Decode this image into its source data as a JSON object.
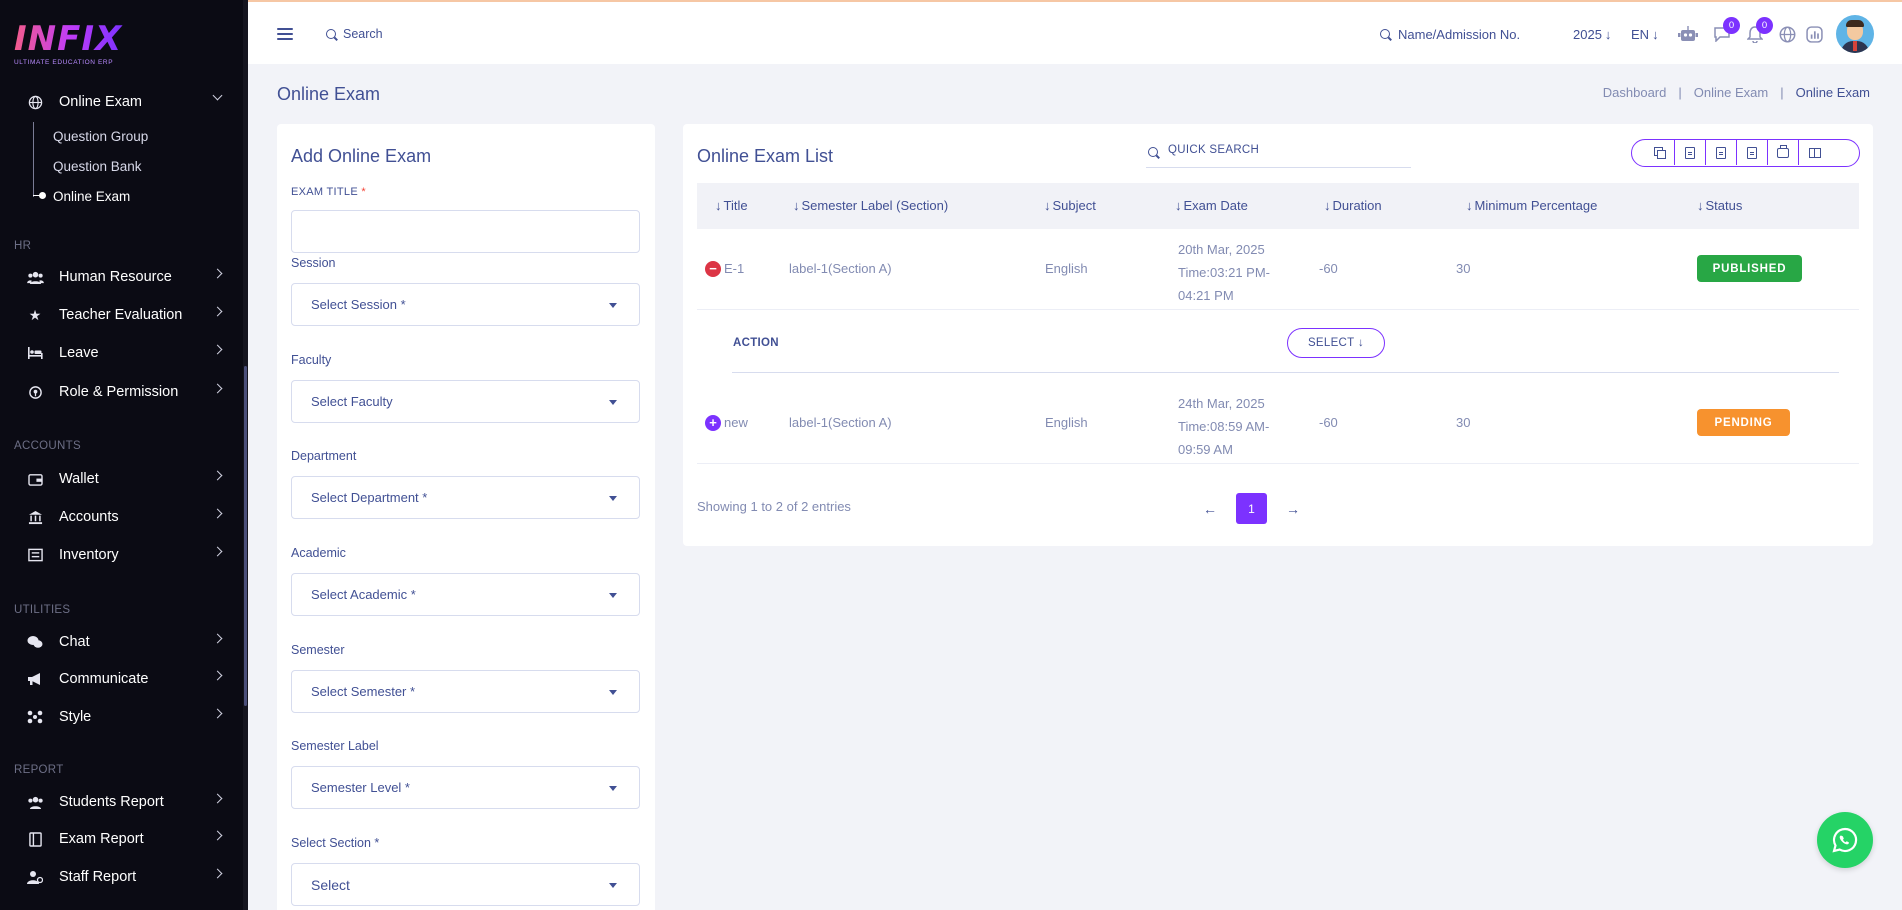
{
  "brand": {
    "logo_text": "INFIX",
    "tagline": "ULTIMATE EDUCATION ERP"
  },
  "sidebar": {
    "active_group": {
      "label": "Online Exam",
      "icon": "globe-icon"
    },
    "sub_items": [
      {
        "label": "Question Group"
      },
      {
        "label": "Question Bank"
      },
      {
        "label": "Online Exam",
        "active": true
      }
    ],
    "sections": {
      "hr": "HR",
      "accounts": "ACCOUNTS",
      "utilities": "UTILITIES",
      "report": "REPORT"
    },
    "items": [
      {
        "label": "Human Resource",
        "icon": "users-icon"
      },
      {
        "label": "Teacher Evaluation",
        "icon": "star-icon"
      },
      {
        "label": "Leave",
        "icon": "bed-icon"
      },
      {
        "label": "Role & Permission",
        "icon": "key-icon"
      },
      {
        "label": "Wallet",
        "icon": "wallet-icon"
      },
      {
        "label": "Accounts",
        "icon": "bank-icon"
      },
      {
        "label": "Inventory",
        "icon": "inventory-icon"
      },
      {
        "label": "Chat",
        "icon": "chat-icon"
      },
      {
        "label": "Communicate",
        "icon": "megaphone-icon"
      },
      {
        "label": "Style",
        "icon": "style-icon"
      },
      {
        "label": "Students Report",
        "icon": "users-icon"
      },
      {
        "label": "Exam Report",
        "icon": "book-icon"
      },
      {
        "label": "Staff Report",
        "icon": "user-gear-icon"
      }
    ]
  },
  "topbar": {
    "search_label": "Search",
    "admission_search": "Name/Admission No.",
    "year": "2025",
    "language": "EN",
    "chat_badge": "0",
    "notification_badge": "0"
  },
  "page": {
    "title": "Online Exam",
    "breadcrumb": [
      "Dashboard",
      "Online Exam",
      "Online Exam"
    ]
  },
  "form": {
    "title": "Add Online Exam",
    "exam_title_label": "EXAM TITLE",
    "required_mark": "*",
    "exam_title_value": "",
    "fields": [
      {
        "label": "Session",
        "placeholder": "Select Session *"
      },
      {
        "label": "Faculty",
        "placeholder": "Select Faculty"
      },
      {
        "label": "Department",
        "placeholder": "Select Department *"
      },
      {
        "label": "Academic",
        "placeholder": "Select Academic *"
      },
      {
        "label": "Semester",
        "placeholder": "Select Semester *"
      },
      {
        "label": "Semester Label",
        "placeholder": "Semester Level *"
      },
      {
        "label": "Select Section *",
        "placeholder": "Select"
      }
    ]
  },
  "list": {
    "title": "Online Exam List",
    "quick_search": "QUICK SEARCH",
    "columns": [
      "Title",
      "Semester Label (Section)",
      "Subject",
      "Exam Date",
      "Duration",
      "Minimum Percentage",
      "Status"
    ],
    "rows": [
      {
        "title": "E-1",
        "semester_label": "label-1(Section A)",
        "subject": "English",
        "exam_date": "20th Mar, 2025",
        "exam_time": "Time:03:21 PM-04:21 PM",
        "duration": "-60",
        "min_percentage": "30",
        "status": "PUBLISHED",
        "expanded": true
      },
      {
        "title": "new",
        "semester_label": "label-1(Section A)",
        "subject": "English",
        "exam_date": "24th Mar, 2025",
        "exam_time": "Time:08:59 AM-09:59 AM",
        "duration": "-60",
        "min_percentage": "30",
        "status": "PENDING",
        "expanded": false
      }
    ],
    "action_label": "ACTION",
    "select_button": "SELECT",
    "showing": "Showing 1 to 2 of 2 entries",
    "current_page": "1"
  },
  "colors": {
    "accent": "#7c32ff",
    "published": "#28a745",
    "pending": "#f7922e",
    "sidebar_bg": "#0b0b14",
    "whatsapp": "#25d366"
  }
}
